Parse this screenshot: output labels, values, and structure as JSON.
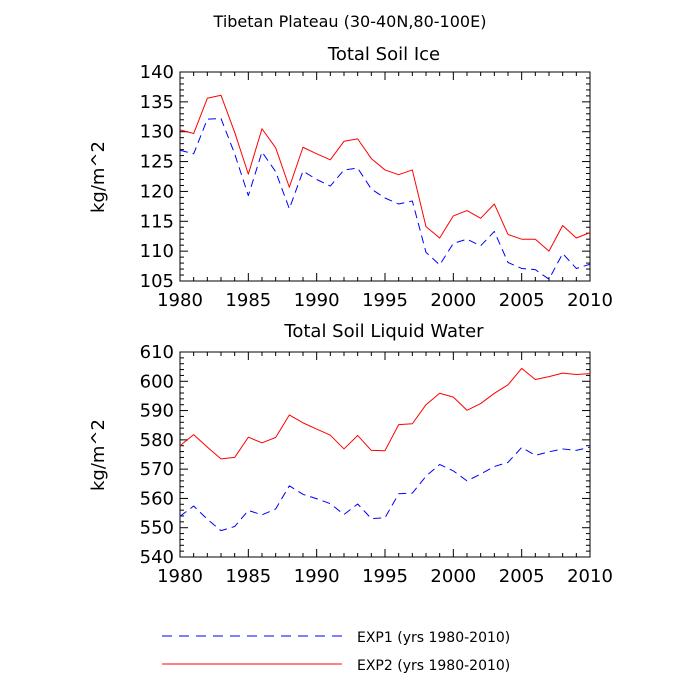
{
  "main_title": "Tibetan Plateau (30-40N,80-100E)",
  "chart_data": [
    {
      "type": "line",
      "title": "Total Soil Ice",
      "xlabel": "",
      "ylabel": "kg/m^2",
      "xlim": [
        1980,
        2010
      ],
      "ylim": [
        105,
        140
      ],
      "xticks": [
        1980,
        1985,
        1990,
        1995,
        2000,
        2005,
        2010
      ],
      "yticks": [
        105,
        110,
        115,
        120,
        125,
        130,
        135,
        140
      ],
      "x": [
        1980,
        1981,
        1982,
        1983,
        1984,
        1985,
        1986,
        1987,
        1988,
        1989,
        1990,
        1991,
        1992,
        1993,
        1994,
        1995,
        1996,
        1997,
        1998,
        1999,
        2000,
        2001,
        2002,
        2003,
        2004,
        2005,
        2006,
        2007,
        2008,
        2009,
        2010
      ],
      "series": [
        {
          "name": "EXP1 (yrs 1980-2010)",
          "color": "#0000ff",
          "dash": true,
          "values": [
            126.9,
            126.3,
            132.1,
            132.2,
            126.3,
            119.3,
            126.6,
            123.3,
            117.1,
            123.4,
            122.0,
            120.9,
            123.6,
            123.9,
            120.4,
            118.9,
            117.9,
            118.4,
            109.8,
            107.7,
            111.3,
            112.0,
            110.9,
            113.3,
            108.1,
            107.1,
            106.9,
            105.3,
            109.6,
            107.1,
            107.8
          ]
        },
        {
          "name": "EXP2 (yrs 1980-2010)",
          "color": "#ff0000",
          "dash": false,
          "values": [
            130.3,
            129.7,
            135.6,
            136.1,
            129.9,
            122.9,
            130.5,
            127.3,
            120.7,
            127.4,
            126.3,
            125.3,
            128.4,
            128.8,
            125.5,
            123.6,
            122.8,
            123.6,
            114.1,
            112.2,
            115.9,
            116.8,
            115.5,
            117.9,
            112.8,
            112.0,
            112.0,
            110.0,
            114.3,
            112.2,
            113.1
          ]
        }
      ]
    },
    {
      "type": "line",
      "title": "Total Soil Liquid Water",
      "xlabel": "",
      "ylabel": "kg/m^2",
      "xlim": [
        1980,
        2010
      ],
      "ylim": [
        540,
        610
      ],
      "xticks": [
        1980,
        1985,
        1990,
        1995,
        2000,
        2005,
        2010
      ],
      "yticks": [
        540,
        550,
        560,
        570,
        580,
        590,
        600,
        610
      ],
      "x": [
        1980,
        1981,
        1982,
        1983,
        1984,
        1985,
        1986,
        1987,
        1988,
        1989,
        1990,
        1991,
        1992,
        1993,
        1994,
        1995,
        1996,
        1997,
        1998,
        1999,
        2000,
        2001,
        2002,
        2003,
        2004,
        2005,
        2006,
        2007,
        2008,
        2009,
        2010
      ],
      "series": [
        {
          "name": "EXP1 (yrs 1980-2010)",
          "color": "#0000ff",
          "dash": true,
          "values": [
            553.9,
            557.4,
            552.9,
            549.0,
            550.4,
            555.9,
            554.4,
            556.4,
            564.3,
            561.4,
            559.9,
            558.2,
            554.5,
            558.1,
            553.1,
            553.4,
            561.6,
            561.8,
            567.6,
            571.6,
            569.4,
            566.0,
            568.3,
            570.9,
            572.3,
            577.4,
            574.7,
            575.9,
            576.9,
            576.4,
            577.5
          ]
        },
        {
          "name": "EXP2 (yrs 1980-2010)",
          "color": "#ff0000",
          "dash": false,
          "values": [
            578.0,
            581.8,
            577.5,
            573.5,
            574.0,
            580.9,
            579.0,
            580.8,
            588.5,
            585.8,
            583.7,
            581.6,
            576.9,
            581.5,
            576.4,
            576.3,
            585.2,
            585.5,
            592.0,
            595.9,
            594.6,
            590.1,
            592.4,
            595.9,
            598.8,
            604.4,
            600.6,
            601.6,
            602.8,
            602.3,
            602.6
          ]
        }
      ]
    }
  ]
}
